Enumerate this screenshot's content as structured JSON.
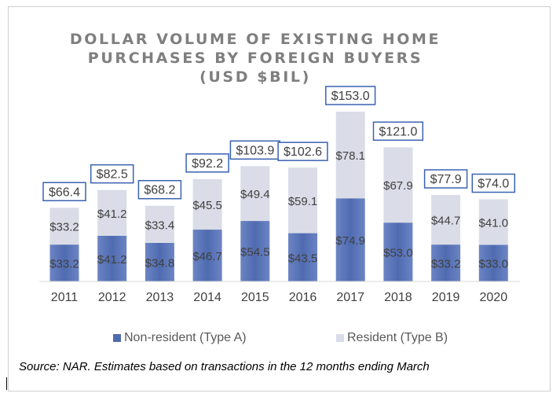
{
  "chart_data": {
    "type": "bar",
    "stacked": true,
    "title_lines": [
      "DOLLAR VOLUME OF EXISTING HOME",
      "PURCHASES BY FOREIGN BUYERS",
      "(USD $BIL)"
    ],
    "categories": [
      "2011",
      "2012",
      "2013",
      "2014",
      "2015",
      "2016",
      "2017",
      "2018",
      "2019",
      "2020"
    ],
    "series": [
      {
        "name": "Non-resident (Type A)",
        "color": "#4f6bb0",
        "values": [
          33.2,
          41.2,
          34.8,
          46.7,
          54.5,
          43.5,
          74.9,
          53.0,
          33.2,
          33.0
        ],
        "labels": [
          "$33.2",
          "$41.2",
          "$34.8",
          "$46.7",
          "$54.5",
          "$43.5",
          "$74.9",
          "$53.0",
          "$33.2",
          "$33.0"
        ]
      },
      {
        "name": "Resident (Type B)",
        "color": "#dadde8",
        "values": [
          33.2,
          41.2,
          33.4,
          45.5,
          49.4,
          59.1,
          78.1,
          67.9,
          44.7,
          41.0
        ],
        "labels": [
          "$33.2",
          "$41.2",
          "$33.4",
          "$45.5",
          "$49.4",
          "$59.1",
          "$78.1",
          "$67.9",
          "$44.7",
          "$41.0"
        ]
      }
    ],
    "totals": [
      66.4,
      82.5,
      68.2,
      92.2,
      103.9,
      102.6,
      153.0,
      121.0,
      77.9,
      74.0
    ],
    "total_labels": [
      "$66.4",
      "$82.5",
      "$68.2",
      "$92.2",
      "$103.9",
      "$102.6",
      "$153.0",
      "$121.0",
      "$77.9",
      "$74.0"
    ],
    "ylim": [
      0,
      153
    ],
    "grid": false,
    "legend_position": "bottom",
    "source": "Source: NAR. Estimates based on transactions in the 12 months ending March"
  }
}
